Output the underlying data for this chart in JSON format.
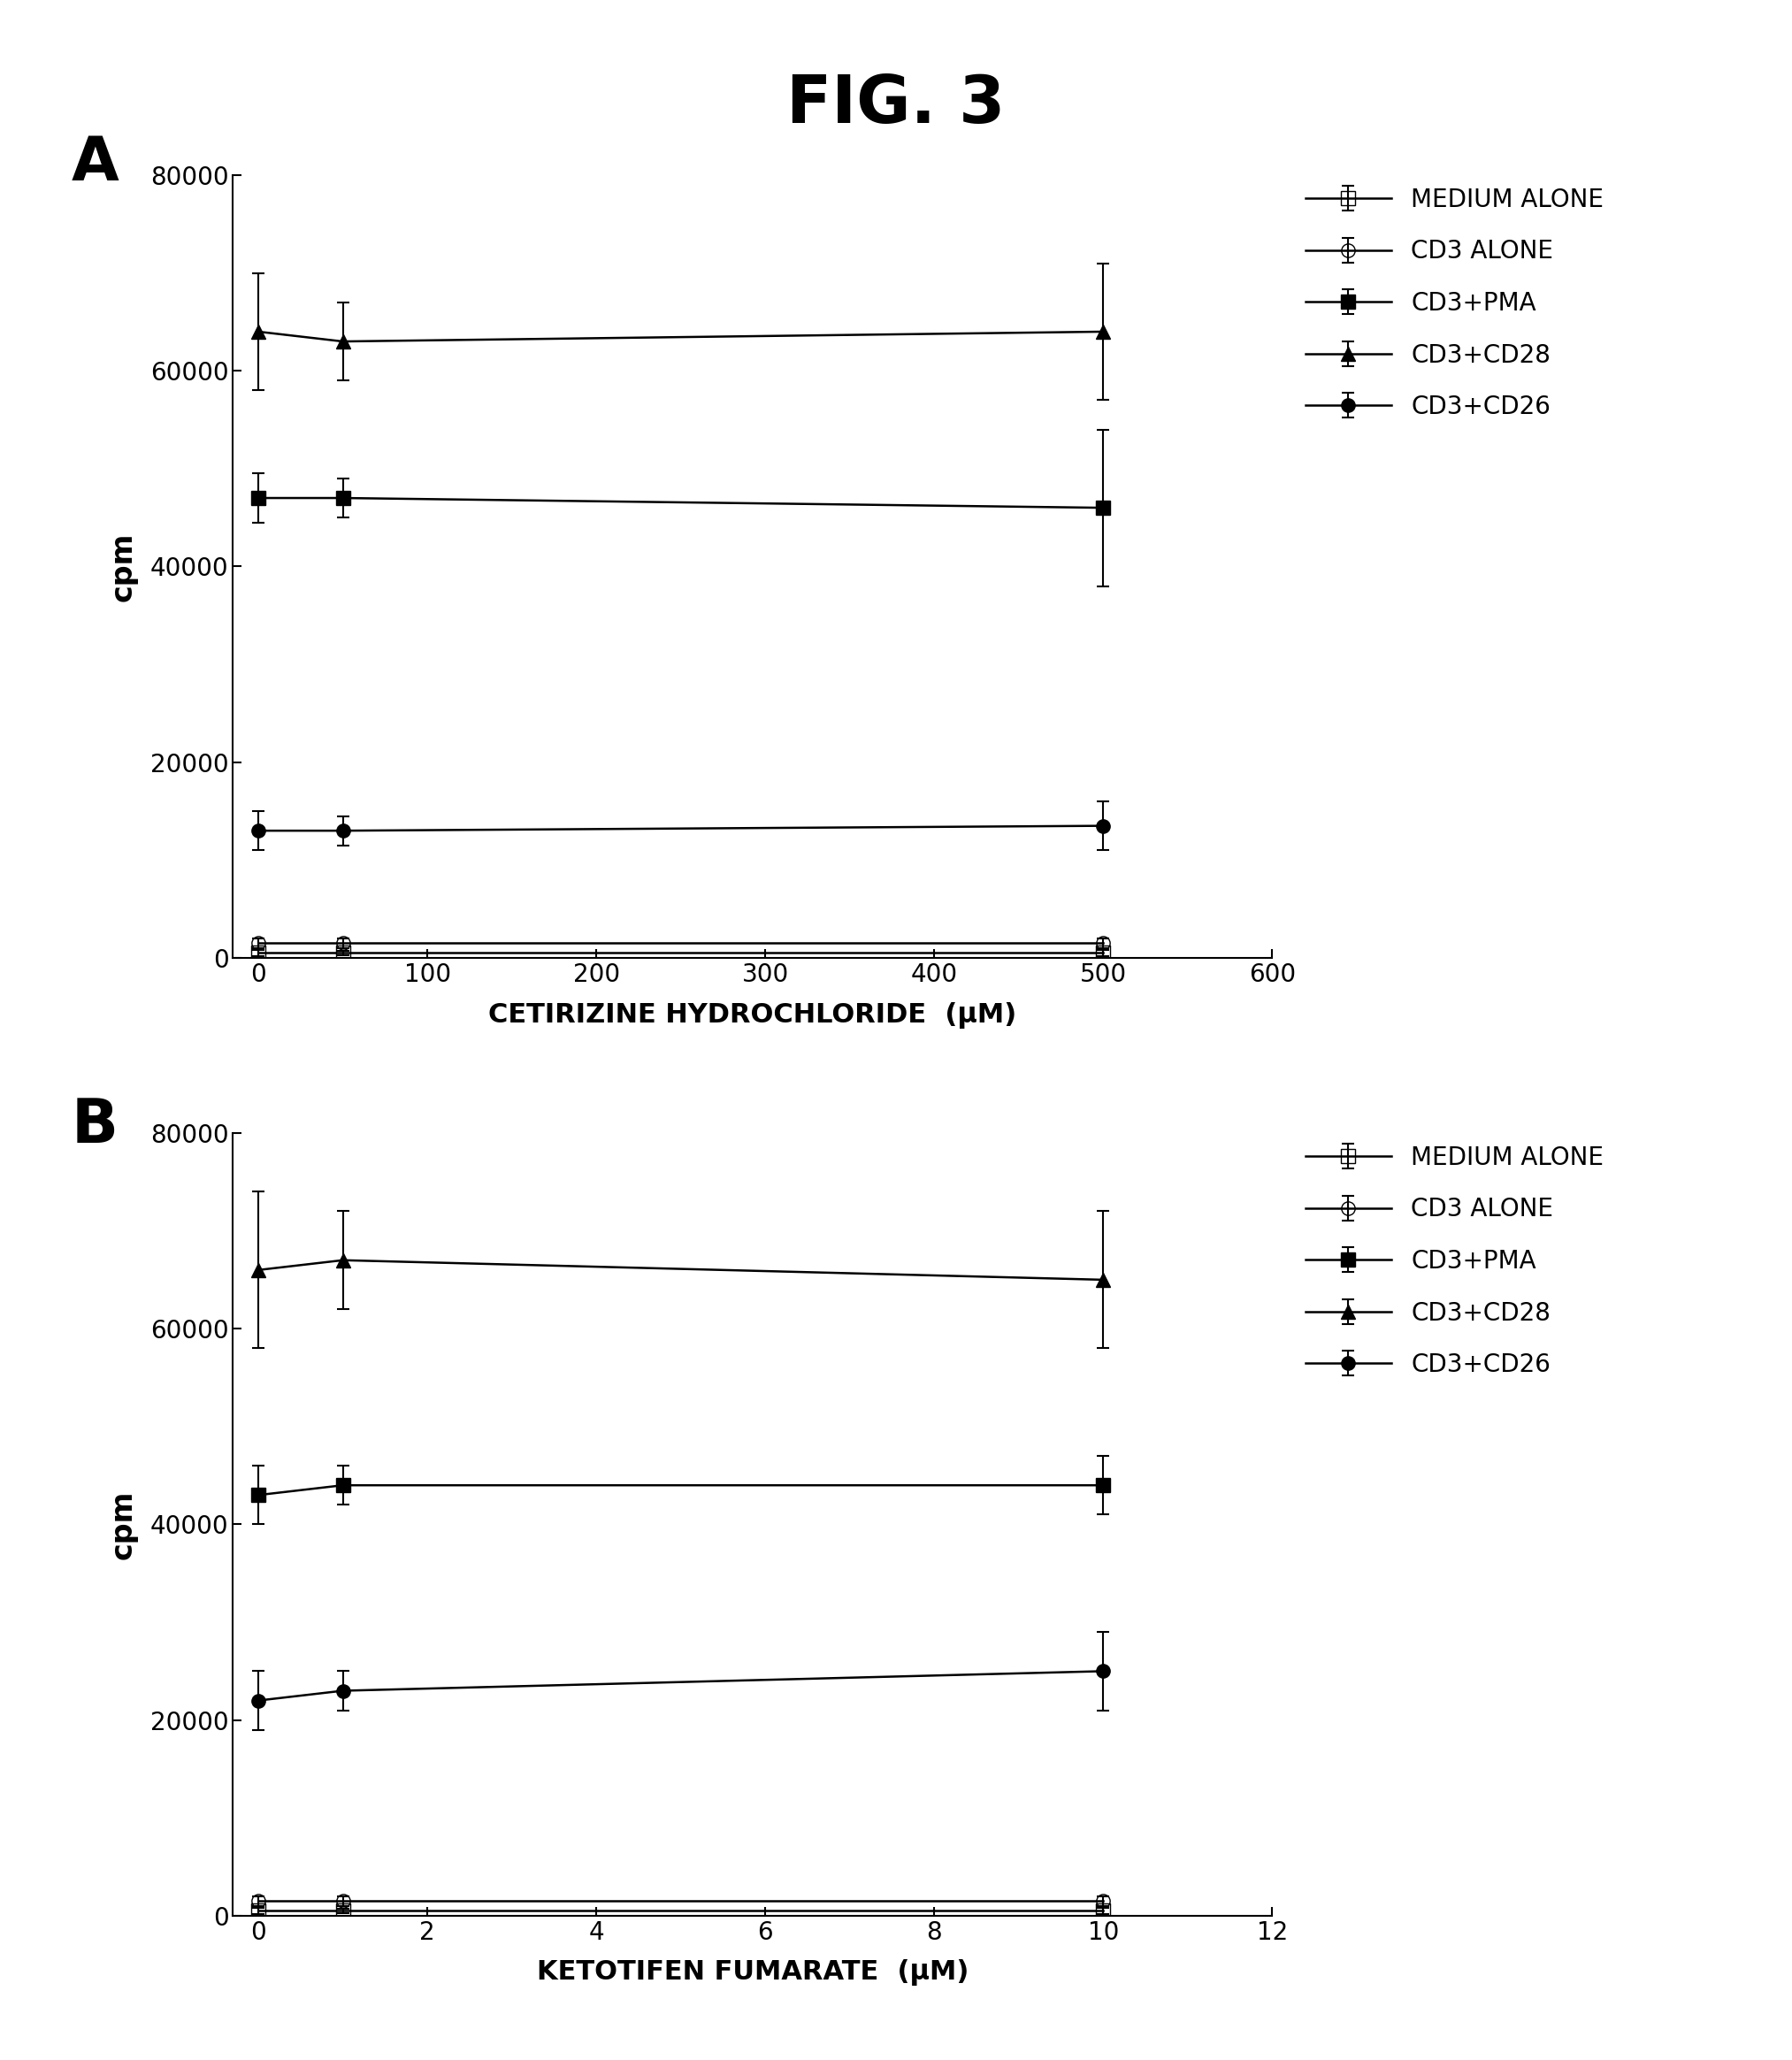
{
  "title": "FIG. 3",
  "panel_A": {
    "label": "A",
    "xlabel": "CETIRIZINE HYDROCHLORIDE  (μM)",
    "ylabel": "cpm",
    "xlim": [
      -15,
      600
    ],
    "ylim": [
      0,
      80000
    ],
    "xticks": [
      0,
      100,
      200,
      300,
      400,
      500,
      600
    ],
    "yticks": [
      0,
      20000,
      40000,
      60000,
      80000
    ],
    "series": {
      "MEDIUM ALONE": {
        "x": [
          0,
          50,
          500
        ],
        "y": [
          500,
          500,
          500
        ],
        "yerr": [
          300,
          200,
          300
        ],
        "marker": "s",
        "fillstyle": "none"
      },
      "CD3 ALONE": {
        "x": [
          0,
          50,
          500
        ],
        "y": [
          1500,
          1500,
          1500
        ],
        "yerr": [
          500,
          500,
          500
        ],
        "marker": "o",
        "fillstyle": "none"
      },
      "CD3+PMA": {
        "x": [
          0,
          50,
          500
        ],
        "y": [
          47000,
          47000,
          46000
        ],
        "yerr": [
          2500,
          2000,
          8000
        ],
        "marker": "s",
        "fillstyle": "full"
      },
      "CD3+CD28": {
        "x": [
          0,
          50,
          500
        ],
        "y": [
          64000,
          63000,
          64000
        ],
        "yerr": [
          6000,
          4000,
          7000
        ],
        "marker": "^",
        "fillstyle": "full"
      },
      "CD3+CD26": {
        "x": [
          0,
          50,
          500
        ],
        "y": [
          13000,
          13000,
          13500
        ],
        "yerr": [
          2000,
          1500,
          2500
        ],
        "marker": "o",
        "fillstyle": "full"
      }
    }
  },
  "panel_B": {
    "label": "B",
    "xlabel": "KETOTIFEN FUMARATE  (μM)",
    "ylabel": "cpm",
    "xlim": [
      -0.3,
      12
    ],
    "ylim": [
      0,
      80000
    ],
    "xticks": [
      0,
      2,
      4,
      6,
      8,
      10,
      12
    ],
    "yticks": [
      0,
      20000,
      40000,
      60000,
      80000
    ],
    "series": {
      "MEDIUM ALONE": {
        "x": [
          0,
          1,
          10
        ],
        "y": [
          500,
          500,
          500
        ],
        "yerr": [
          300,
          200,
          300
        ],
        "marker": "s",
        "fillstyle": "none"
      },
      "CD3 ALONE": {
        "x": [
          0,
          1,
          10
        ],
        "y": [
          1500,
          1500,
          1500
        ],
        "yerr": [
          500,
          500,
          500
        ],
        "marker": "o",
        "fillstyle": "none"
      },
      "CD3+PMA": {
        "x": [
          0,
          1,
          10
        ],
        "y": [
          43000,
          44000,
          44000
        ],
        "yerr": [
          3000,
          2000,
          3000
        ],
        "marker": "s",
        "fillstyle": "full"
      },
      "CD3+CD28": {
        "x": [
          0,
          1,
          10
        ],
        "y": [
          66000,
          67000,
          65000
        ],
        "yerr": [
          8000,
          5000,
          7000
        ],
        "marker": "^",
        "fillstyle": "full"
      },
      "CD3+CD26": {
        "x": [
          0,
          1,
          10
        ],
        "y": [
          22000,
          23000,
          25000
        ],
        "yerr": [
          3000,
          2000,
          4000
        ],
        "marker": "o",
        "fillstyle": "full"
      }
    }
  },
  "legend_order": [
    "MEDIUM ALONE",
    "CD3 ALONE",
    "CD3+PMA",
    "CD3+CD28",
    "CD3+CD26"
  ]
}
